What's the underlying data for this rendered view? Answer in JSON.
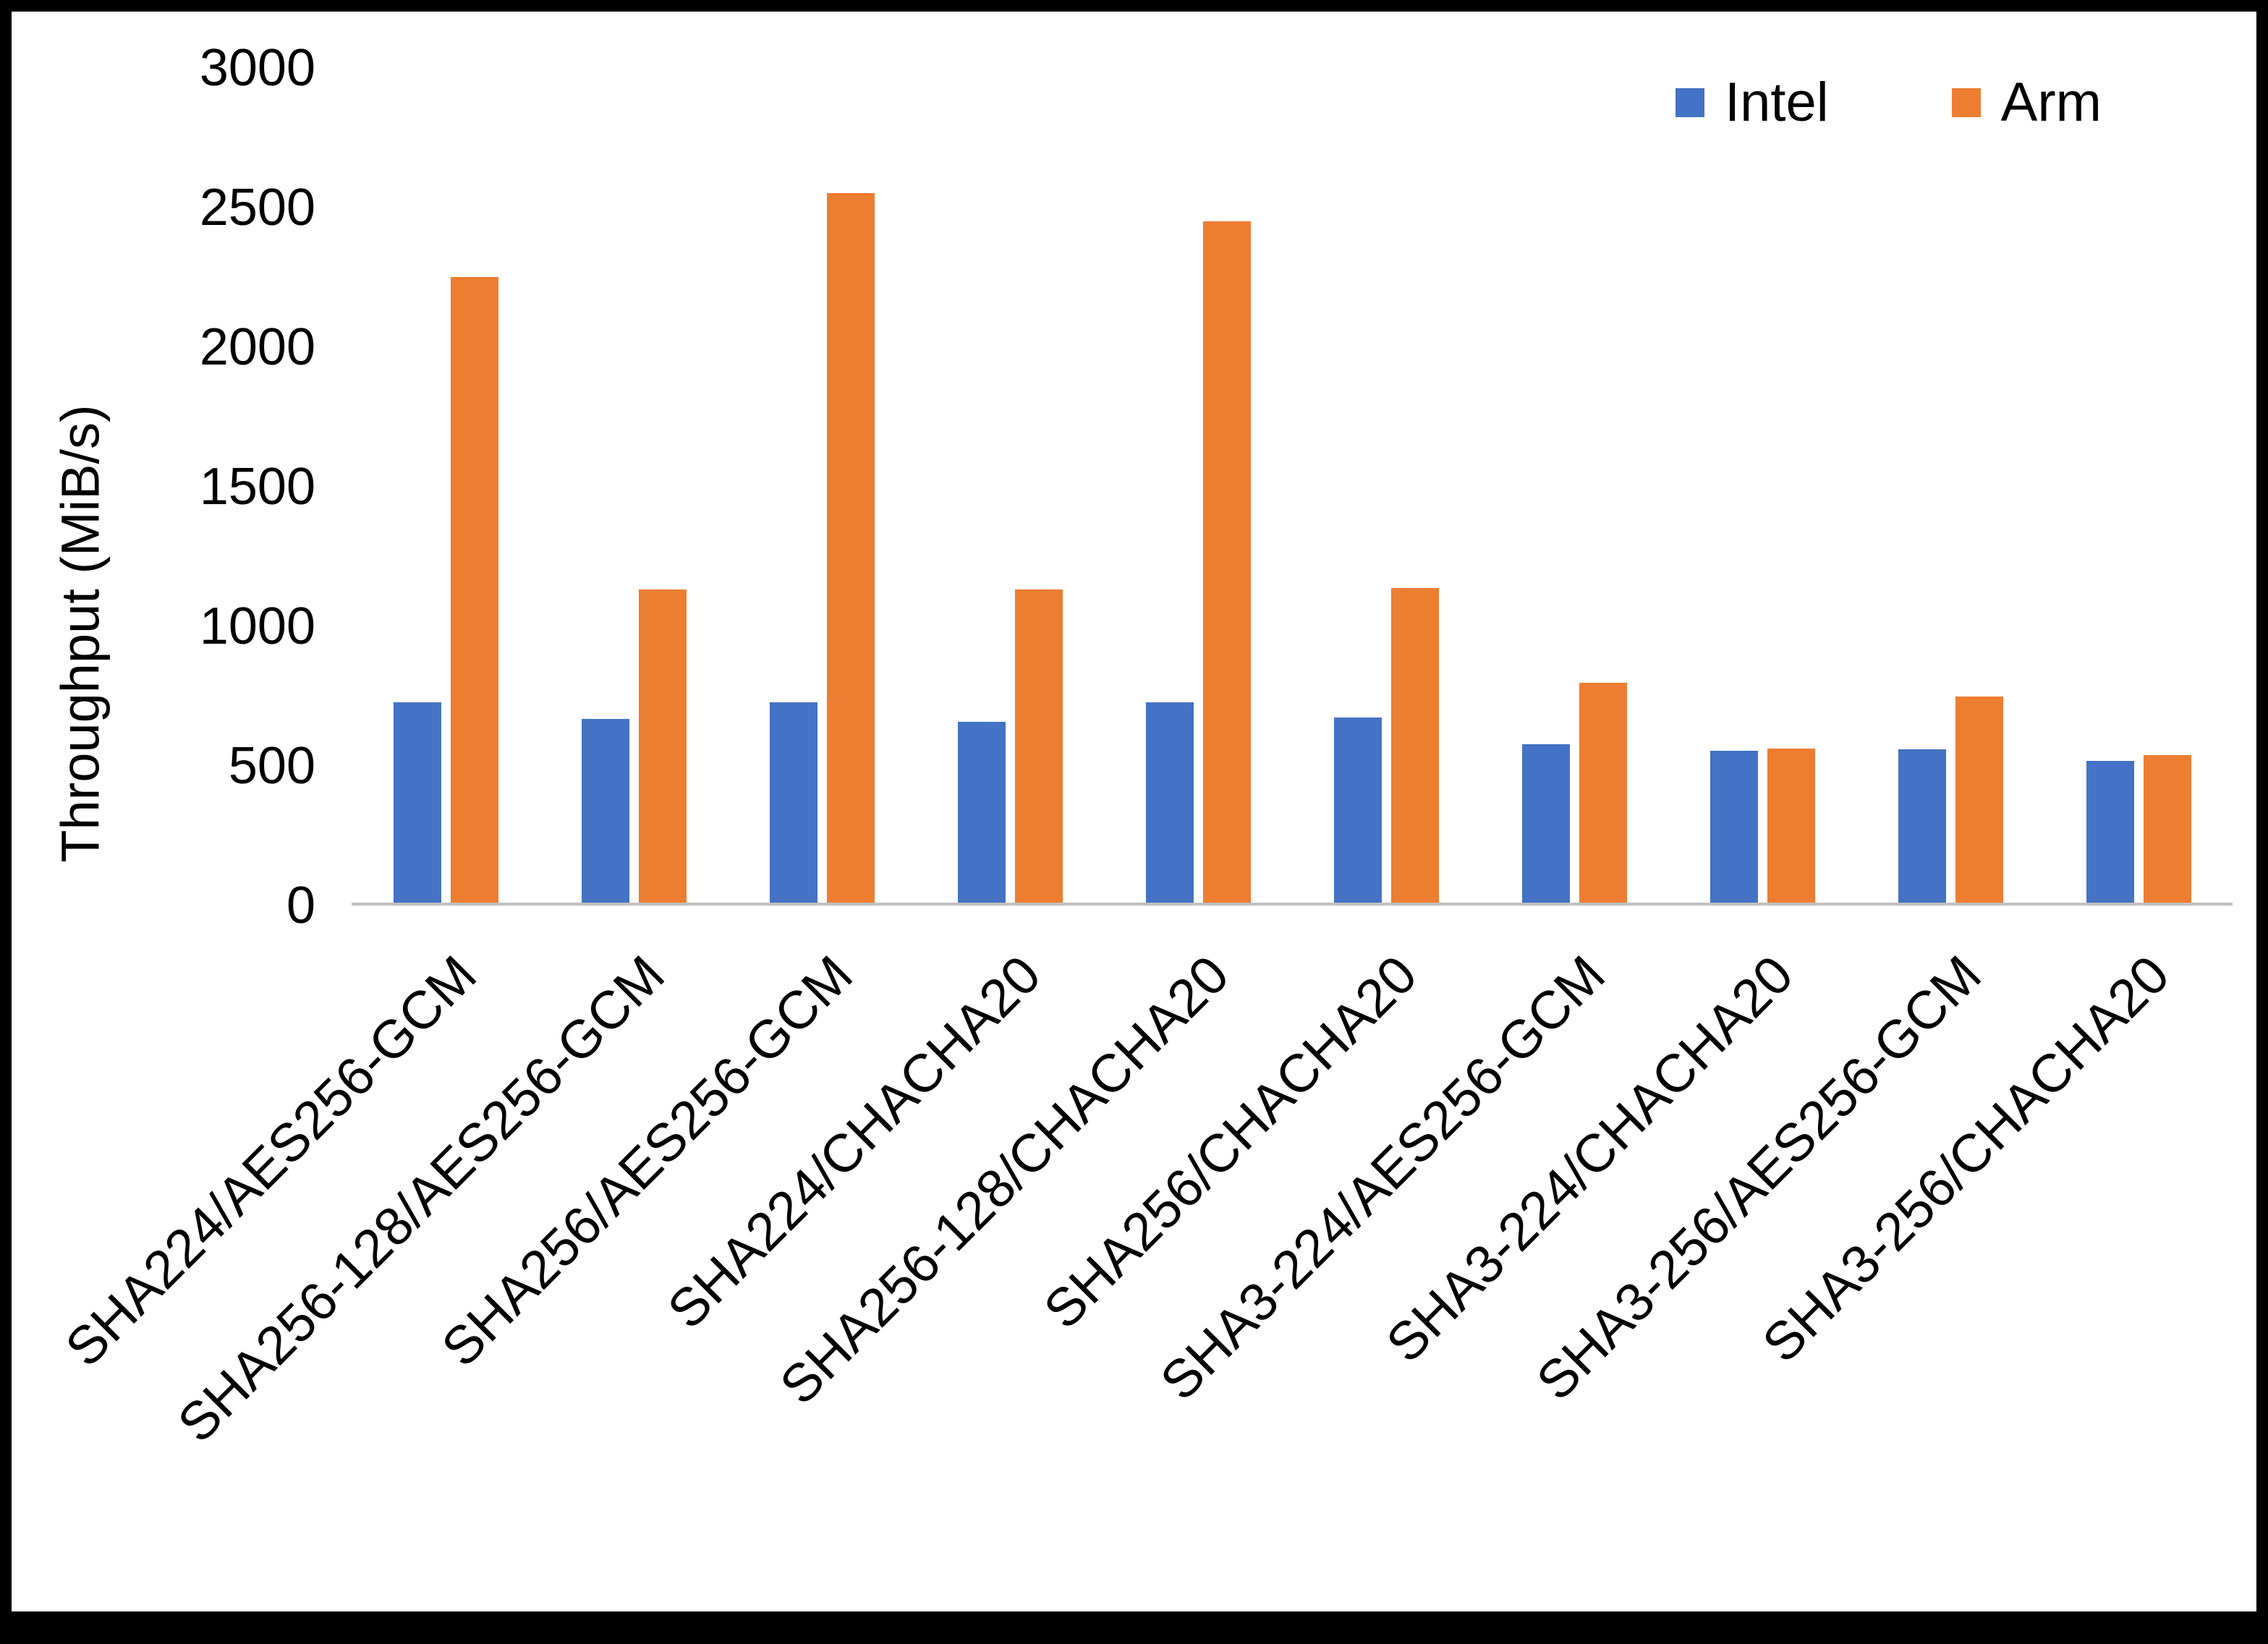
{
  "figure": {
    "background": "#FFFFFF",
    "border_color": "#000000",
    "axis_line_color": "#BFBFBF"
  },
  "chart_data": {
    "type": "bar",
    "title": "",
    "xlabel": "",
    "ylabel": "Throughput (MiB/s)",
    "ylim": [
      0,
      3000
    ],
    "yticks": [
      0,
      500,
      1000,
      1500,
      2000,
      2500,
      3000
    ],
    "grid": false,
    "legend_position": "top-right",
    "categories": [
      "SHA224/AES256-GCM",
      "SHA256-128/AES256-GCM",
      "SHA256/AES256-GCM",
      "SHA224/CHACHA20",
      "SHA256-128/CHACHA20",
      "SHA256/CHACHA20",
      "SHA3-224/AES256-GCM",
      "SHA3-224/CHACHA20",
      "SHA3-256/AES256-GCM",
      "SHA3-256/CHACHA20"
    ],
    "series": [
      {
        "name": "Intel",
        "color": "#4472C4",
        "values": [
          720,
          660,
          720,
          650,
          720,
          665,
          570,
          545,
          550,
          510
        ]
      },
      {
        "name": "Arm",
        "color": "#ED7D31",
        "values": [
          2250,
          1125,
          2550,
          1125,
          2450,
          1130,
          790,
          555,
          740,
          530
        ]
      }
    ]
  }
}
